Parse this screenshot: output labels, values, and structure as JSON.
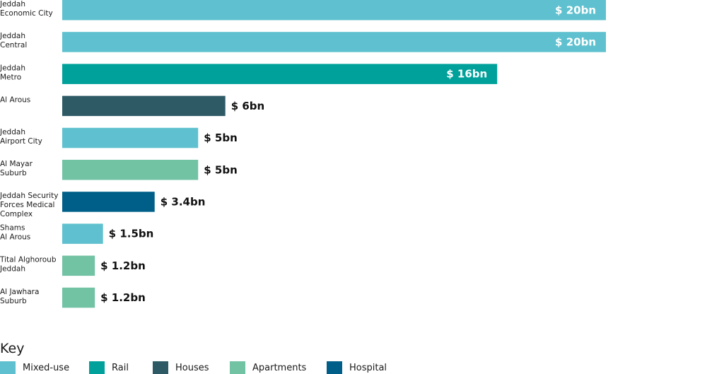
{
  "chart_data": {
    "type": "bar",
    "orientation": "horizontal",
    "unit": "$ bn",
    "categories": [
      [
        "Jeddah",
        "Economic City"
      ],
      [
        "Jeddah",
        "Central"
      ],
      [
        "Jeddah",
        "Metro"
      ],
      [
        "Al Arous"
      ],
      [
        "Jeddah",
        "Airport City"
      ],
      [
        "Al Mayar",
        "Suburb"
      ],
      [
        "Jeddah Security",
        "Forces Medical",
        "Complex"
      ],
      [
        "Shams",
        "Al Arous"
      ],
      [
        "Tital Alghoroub",
        "Jeddah"
      ],
      [
        "Al Jawhara",
        "Suburb"
      ]
    ],
    "values": [
      20,
      20,
      16,
      6,
      5,
      5,
      3.4,
      1.5,
      1.2,
      1.2
    ],
    "value_labels": [
      "$ 20bn",
      "$ 20bn",
      "$ 16bn",
      "$ 6bn",
      "$ 5bn",
      "$ 5bn",
      "$ 3.4bn",
      "$ 1.5bn",
      "$ 1.2bn",
      "$ 1.2bn"
    ],
    "types": [
      "mixed-use",
      "mixed-use",
      "rail",
      "houses",
      "mixed-use",
      "apartments",
      "hospital",
      "mixed-use",
      "apartments",
      "apartments"
    ],
    "xlim": [
      0,
      20
    ],
    "grid": false,
    "legend_placement": "bottom-left"
  },
  "legend": {
    "title": "Key",
    "items": [
      {
        "key": "mixed-use",
        "label": "Mixed-use",
        "color": "#5fc1cf"
      },
      {
        "key": "rail",
        "label": "Rail",
        "color": "#00a19a"
      },
      {
        "key": "houses",
        "label": "Houses",
        "color": "#2e5a66"
      },
      {
        "key": "apartments",
        "label": "Apartments",
        "color": "#72c2a4"
      },
      {
        "key": "hospital",
        "label": "Hospital",
        "color": "#005f88"
      }
    ]
  }
}
